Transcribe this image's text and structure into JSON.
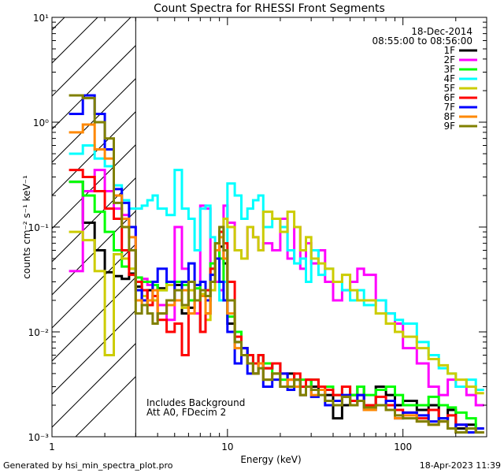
{
  "chart_data": {
    "type": "line",
    "title": "Count Spectra for RHESSI Front Segments",
    "xlabel": "Energy (keV)",
    "ylabel": "counts cm⁻² s⁻¹ keV⁻¹",
    "xscale": "log",
    "yscale": "log",
    "xlim": [
      1,
      300
    ],
    "ylim": [
      0.001,
      10
    ],
    "x_tick_labels": [
      "1",
      "10",
      "100"
    ],
    "x_tick_values": [
      1,
      10,
      100
    ],
    "y_tick_labels": [
      "10⁻³",
      "10⁻²",
      "10⁻¹",
      "10⁰",
      "10¹"
    ],
    "y_tick_values": [
      0.001,
      0.01,
      0.1,
      1,
      10
    ],
    "hatched_region_upper_keV": 3,
    "date": "18-Dec-2014",
    "time_range": "08:55:00 to 08:56:00",
    "annotation_lines": [
      "Includes Background",
      "Att A0, FDecim 2"
    ],
    "footer_left": "Generated by hsi_min_spectra_plot.pro",
    "footer_right": "18-Apr-2023 11:39",
    "energy_edges": [
      1.25,
      1.5,
      1.75,
      2.0,
      2.25,
      2.5,
      2.75,
      3.0,
      3.25,
      3.5,
      3.75,
      4.0,
      4.5,
      5.0,
      5.5,
      6.0,
      6.5,
      7.0,
      7.5,
      8.0,
      8.5,
      9.0,
      9.5,
      10.0,
      11.0,
      12.0,
      13.0,
      14.0,
      15.0,
      16.0,
      18.0,
      20.0,
      22.0,
      24.0,
      26.0,
      28.0,
      30.0,
      33.0,
      36.0,
      40.0,
      45.0,
      50.0,
      55.0,
      60.0,
      70.0,
      80.0,
      90.0,
      100.0,
      120.0,
      140.0,
      160.0,
      180.0,
      200.0,
      230.0,
      260.0,
      290.0
    ],
    "series": [
      {
        "name": "1F",
        "color": "#000000",
        "values": [
          0.27,
          0.11,
          0.06,
          0.037,
          0.034,
          0.032,
          0.036,
          0.027,
          0.02,
          0.025,
          0.028,
          0.026,
          0.03,
          0.028,
          0.015,
          0.017,
          0.02,
          0.01,
          0.015,
          0.03,
          0.05,
          0.065,
          0.045,
          0.012,
          0.008,
          0.006,
          0.005,
          0.004,
          0.006,
          0.0045,
          0.005,
          0.003,
          0.004,
          0.0035,
          0.003,
          0.0035,
          0.003,
          0.0028,
          0.0025,
          0.0015,
          0.002,
          0.0025,
          0.003,
          0.002,
          0.003,
          0.0025,
          0.002,
          0.0022,
          0.0018,
          0.002,
          0.0015,
          0.0018,
          0.0012,
          0.0013,
          0.0011
        ]
      },
      {
        "name": "2F",
        "color": "#ff00ff",
        "values": [
          0.038,
          0.22,
          0.35,
          0.22,
          0.15,
          0.13,
          0.1,
          0.03,
          0.032,
          0.028,
          0.02,
          0.018,
          0.013,
          0.1,
          0.04,
          0.03,
          0.015,
          0.16,
          0.15,
          0.04,
          0.03,
          0.025,
          0.16,
          0.11,
          0.06,
          0.05,
          0.1,
          0.08,
          0.06,
          0.07,
          0.06,
          0.12,
          0.05,
          0.1,
          0.04,
          0.07,
          0.045,
          0.06,
          0.03,
          0.02,
          0.025,
          0.03,
          0.04,
          0.035,
          0.02,
          0.015,
          0.012,
          0.007,
          0.005,
          0.003,
          0.0025,
          0.0035,
          0.003,
          0.0025,
          0.002
        ]
      },
      {
        "name": "3F",
        "color": "#00ff00",
        "values": [
          0.27,
          0.2,
          0.14,
          0.09,
          0.06,
          0.042,
          0.04,
          0.033,
          0.03,
          0.03,
          0.028,
          0.025,
          0.03,
          0.03,
          0.028,
          0.02,
          0.026,
          0.03,
          0.02,
          0.045,
          0.07,
          0.05,
          0.03,
          0.014,
          0.01,
          0.007,
          0.006,
          0.005,
          0.006,
          0.005,
          0.004,
          0.0035,
          0.003,
          0.0035,
          0.0035,
          0.003,
          0.0035,
          0.003,
          0.003,
          0.0025,
          0.003,
          0.0025,
          0.003,
          0.0025,
          0.0028,
          0.003,
          0.0025,
          0.002,
          0.002,
          0.0024,
          0.002,
          0.0019,
          0.0017,
          0.0015,
          0.0012
        ]
      },
      {
        "name": "4F",
        "color": "#00ffff",
        "values": [
          0.5,
          0.6,
          0.45,
          0.38,
          0.25,
          0.18,
          0.15,
          0.15,
          0.16,
          0.18,
          0.2,
          0.15,
          0.13,
          0.35,
          0.15,
          0.12,
          0.06,
          0.15,
          0.16,
          0.08,
          0.05,
          0.02,
          0.03,
          0.26,
          0.2,
          0.12,
          0.15,
          0.18,
          0.2,
          0.1,
          0.12,
          0.1,
          0.06,
          0.045,
          0.05,
          0.03,
          0.06,
          0.035,
          0.04,
          0.03,
          0.025,
          0.02,
          0.025,
          0.018,
          0.02,
          0.015,
          0.013,
          0.012,
          0.008,
          0.006,
          0.0045,
          0.004,
          0.003,
          0.0035,
          0.0028
        ]
      },
      {
        "name": "5F",
        "color": "#cccc00",
        "values": [
          0.09,
          0.075,
          0.038,
          0.006,
          0.055,
          0.05,
          0.04,
          0.03,
          0.022,
          0.018,
          0.02,
          0.025,
          0.028,
          0.02,
          0.017,
          0.025,
          0.02,
          0.023,
          0.013,
          0.025,
          0.06,
          0.09,
          0.12,
          0.1,
          0.06,
          0.05,
          0.1,
          0.08,
          0.06,
          0.14,
          0.12,
          0.09,
          0.14,
          0.1,
          0.06,
          0.08,
          0.05,
          0.045,
          0.04,
          0.03,
          0.035,
          0.025,
          0.02,
          0.02,
          0.015,
          0.012,
          0.01,
          0.009,
          0.007,
          0.0055,
          0.0048,
          0.004,
          0.0035,
          0.003,
          0.0026
        ]
      },
      {
        "name": "6F",
        "color": "#ff0000",
        "values": [
          0.35,
          0.3,
          0.22,
          0.15,
          0.12,
          0.06,
          0.035,
          0.03,
          0.025,
          0.018,
          0.022,
          0.013,
          0.01,
          0.012,
          0.006,
          0.03,
          0.02,
          0.01,
          0.025,
          0.04,
          0.06,
          0.09,
          0.07,
          0.03,
          0.009,
          0.007,
          0.006,
          0.005,
          0.006,
          0.0045,
          0.005,
          0.004,
          0.0035,
          0.004,
          0.003,
          0.0035,
          0.0035,
          0.003,
          0.0028,
          0.0025,
          0.003,
          0.0022,
          0.0025,
          0.002,
          0.0024,
          0.002,
          0.0018,
          0.0017,
          0.0015,
          0.0018,
          0.0014,
          0.0016,
          0.0013,
          0.0011,
          0.0012
        ]
      },
      {
        "name": "7F",
        "color": "#0000ff",
        "values": [
          1.2,
          1.8,
          1.2,
          0.55,
          0.23,
          0.17,
          0.1,
          0.025,
          0.02,
          0.02,
          0.03,
          0.04,
          0.03,
          0.02,
          0.03,
          0.045,
          0.028,
          0.03,
          0.02,
          0.035,
          0.05,
          0.03,
          0.02,
          0.01,
          0.005,
          0.007,
          0.004,
          0.004,
          0.005,
          0.003,
          0.0035,
          0.004,
          0.0028,
          0.003,
          0.0025,
          0.003,
          0.0024,
          0.0028,
          0.002,
          0.0022,
          0.0025,
          0.002,
          0.0025,
          0.0018,
          0.002,
          0.0022,
          0.0015,
          0.0017,
          0.0016,
          0.0014,
          0.0015,
          0.0012,
          0.0013,
          0.0011,
          0.0012
        ]
      },
      {
        "name": "8F",
        "color": "#ff8800",
        "values": [
          0.8,
          0.95,
          0.55,
          0.45,
          0.2,
          0.12,
          0.08,
          0.02,
          0.018,
          0.02,
          0.025,
          0.015,
          0.018,
          0.02,
          0.025,
          0.015,
          0.02,
          0.022,
          0.015,
          0.03,
          0.06,
          0.08,
          0.05,
          0.015,
          0.007,
          0.006,
          0.005,
          0.004,
          0.005,
          0.0035,
          0.004,
          0.003,
          0.0035,
          0.003,
          0.0025,
          0.003,
          0.0025,
          0.0028,
          0.0022,
          0.002,
          0.0024,
          0.002,
          0.0022,
          0.0018,
          0.002,
          0.0018,
          0.0015,
          0.0016,
          0.0014,
          0.0013,
          0.0014,
          0.0012,
          0.0011,
          0.0012,
          0.0011
        ]
      },
      {
        "name": "9F",
        "color": "#808000",
        "values": [
          1.8,
          1.7,
          1.0,
          0.7,
          0.17,
          0.1,
          0.06,
          0.015,
          0.018,
          0.015,
          0.012,
          0.015,
          0.02,
          0.025,
          0.018,
          0.03,
          0.02,
          0.025,
          0.022,
          0.03,
          0.07,
          0.1,
          0.06,
          0.02,
          0.008,
          0.006,
          0.005,
          0.004,
          0.0045,
          0.0035,
          0.004,
          0.003,
          0.003,
          0.0035,
          0.0025,
          0.003,
          0.0028,
          0.0025,
          0.0022,
          0.002,
          0.0024,
          0.002,
          0.0022,
          0.0019,
          0.002,
          0.0018,
          0.0016,
          0.0015,
          0.0014,
          0.0013,
          0.0014,
          0.0012,
          0.0011,
          0.0012,
          0.0011
        ]
      }
    ]
  }
}
